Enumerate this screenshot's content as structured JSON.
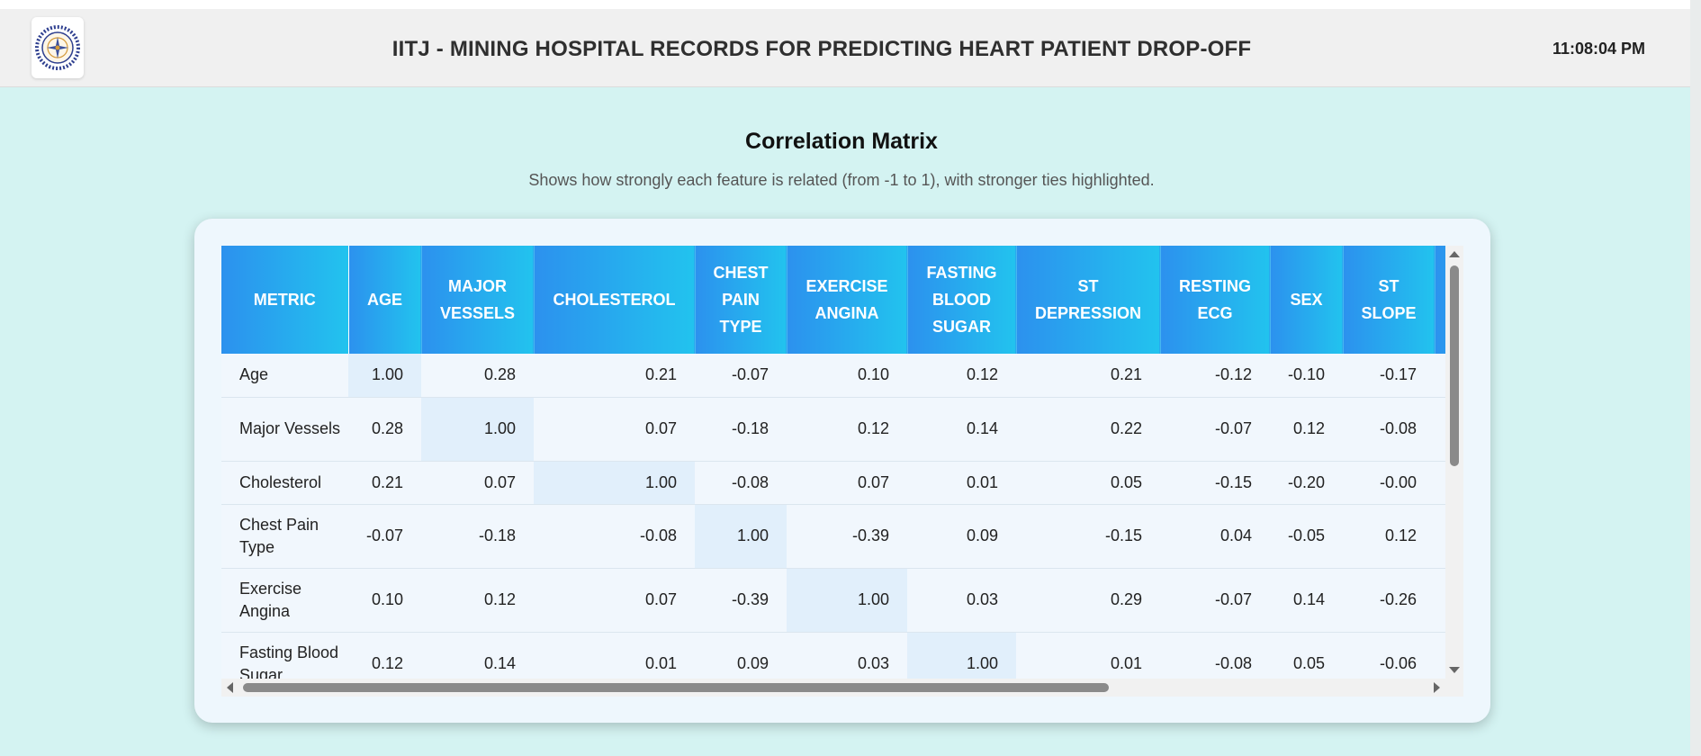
{
  "header": {
    "title": "IITJ - MINING HOSPITAL RECORDS FOR PREDICTING HEART PATIENT DROP-OFF",
    "clock": "11:08:04 PM",
    "logo_icon": "institute-seal-logo"
  },
  "section": {
    "title": "Correlation Matrix",
    "subtitle": "Shows how strongly each feature is related (from -1 to 1), with stronger ties highlighted."
  },
  "colors": {
    "page_background": "#d4f3f2",
    "header_gradient_start": "#2c91ee",
    "header_gradient_end": "#22c3ee",
    "diagonal_highlight": "#e1effb",
    "card_background": "#eef7fd"
  },
  "table": {
    "columns": [
      "Metric",
      "Age",
      "Major Vessels",
      "Cholesterol",
      "Chest Pain Type",
      "Exercise Angina",
      "Fasting Blood Sugar",
      "ST Depression",
      "Resting ECG",
      "Sex",
      "ST Slope"
    ],
    "rows": [
      {
        "label": "Age",
        "values": [
          "1.00",
          "0.28",
          "0.21",
          "-0.07",
          "0.10",
          "0.12",
          "0.21",
          "-0.12",
          "-0.10",
          "-0.17"
        ]
      },
      {
        "label": "Major Vessels",
        "values": [
          "0.28",
          "1.00",
          "0.07",
          "-0.18",
          "0.12",
          "0.14",
          "0.22",
          "-0.07",
          "0.12",
          "-0.08"
        ]
      },
      {
        "label": "Cholesterol",
        "values": [
          "0.21",
          "0.07",
          "1.00",
          "-0.08",
          "0.07",
          "0.01",
          "0.05",
          "-0.15",
          "-0.20",
          "-0.00"
        ]
      },
      {
        "label": "Chest Pain Type",
        "values": [
          "-0.07",
          "-0.18",
          "-0.08",
          "1.00",
          "-0.39",
          "0.09",
          "-0.15",
          "0.04",
          "-0.05",
          "0.12"
        ]
      },
      {
        "label": "Exercise Angina",
        "values": [
          "0.10",
          "0.12",
          "0.07",
          "-0.39",
          "1.00",
          "0.03",
          "0.29",
          "-0.07",
          "0.14",
          "-0.26"
        ]
      },
      {
        "label": "Fasting Blood Sugar",
        "values": [
          "0.12",
          "0.14",
          "0.01",
          "0.09",
          "0.03",
          "1.00",
          "0.01",
          "-0.08",
          "0.05",
          "-0.06"
        ]
      }
    ]
  }
}
